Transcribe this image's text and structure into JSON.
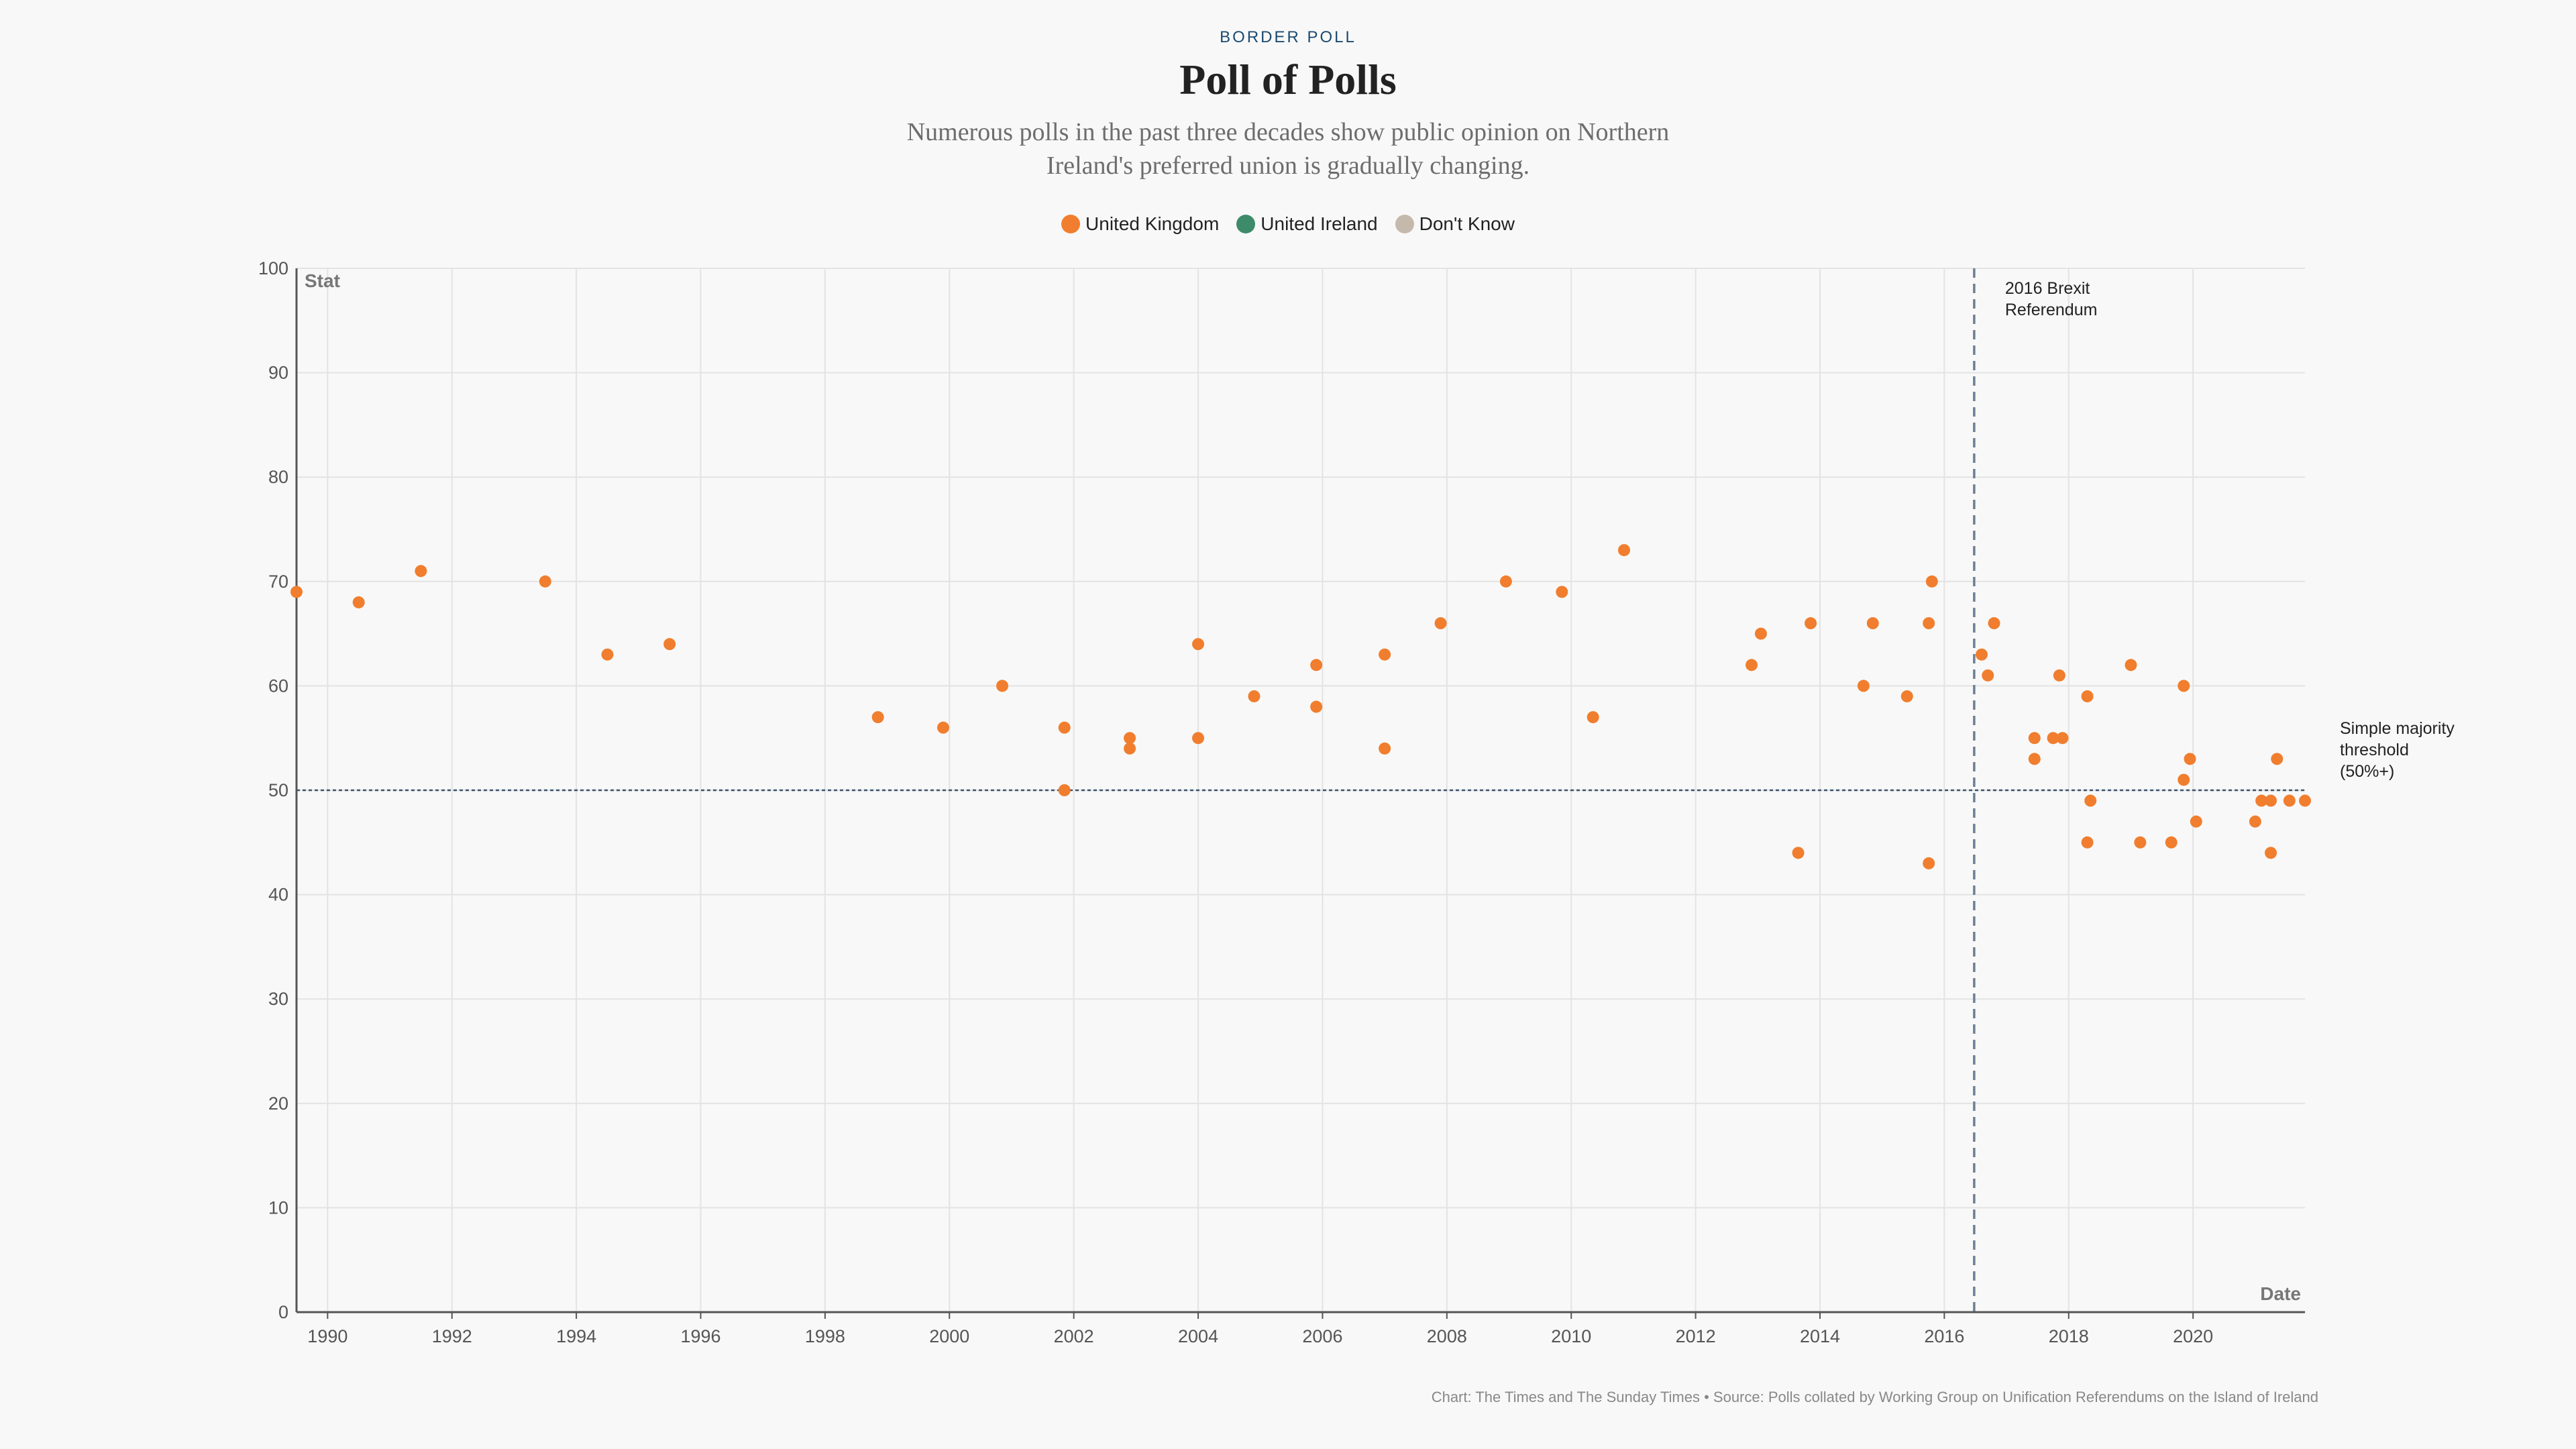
{
  "header": {
    "kicker": "BORDER POLL",
    "title": "Poll of Polls",
    "subtitle": "Numerous polls in the past three decades show public opinion on Northern Ireland's preferred union is gradually changing."
  },
  "legend": [
    {
      "label": "United Kingdom",
      "color": "#f07e2e"
    },
    {
      "label": "United Ireland",
      "color": "#3d8b68"
    },
    {
      "label": "Don't Know",
      "color": "#c5b9ab"
    }
  ],
  "footer": {
    "credit": "Chart: The Times and The Sunday Times • Source: Polls collated by Working Group on Unification Referendums on the Island of Ireland"
  },
  "chart_data": {
    "type": "scatter",
    "xlabel": "Date",
    "ylabel": "Stat",
    "xlim": [
      1989.5,
      2021.8
    ],
    "ylim": [
      0,
      100
    ],
    "x_ticks": [
      1990,
      1992,
      1994,
      1996,
      1998,
      2000,
      2002,
      2004,
      2006,
      2008,
      2010,
      2012,
      2014,
      2016,
      2018,
      2020
    ],
    "y_ticks": [
      0,
      10,
      20,
      30,
      40,
      50,
      60,
      70,
      80,
      90,
      100
    ],
    "grid": true,
    "legend_position": "top-center",
    "series": [
      {
        "name": "United Kingdom",
        "color": "#f07e2e",
        "points": [
          [
            1989.5,
            69
          ],
          [
            1990.5,
            68
          ],
          [
            1991.5,
            71
          ],
          [
            1993.5,
            70
          ],
          [
            1994.5,
            63
          ],
          [
            1995.5,
            64
          ],
          [
            1998.85,
            57
          ],
          [
            1999.9,
            56
          ],
          [
            2000.85,
            60
          ],
          [
            2001.85,
            56
          ],
          [
            2001.85,
            50
          ],
          [
            2002.9,
            55
          ],
          [
            2002.9,
            54
          ],
          [
            2004.0,
            64
          ],
          [
            2004.0,
            55
          ],
          [
            2004.9,
            59
          ],
          [
            2005.9,
            62
          ],
          [
            2005.9,
            58
          ],
          [
            2007.0,
            63
          ],
          [
            2007.0,
            54
          ],
          [
            2007.9,
            66
          ],
          [
            2008.95,
            70
          ],
          [
            2009.85,
            69
          ],
          [
            2010.35,
            57
          ],
          [
            2010.85,
            73
          ],
          [
            2012.9,
            62
          ],
          [
            2013.05,
            65
          ],
          [
            2013.65,
            44
          ],
          [
            2013.85,
            66
          ],
          [
            2014.7,
            60
          ],
          [
            2014.85,
            66
          ],
          [
            2015.4,
            59
          ],
          [
            2015.75,
            66
          ],
          [
            2015.75,
            43
          ],
          [
            2015.8,
            70
          ],
          [
            2016.6,
            63
          ],
          [
            2016.7,
            61
          ],
          [
            2016.8,
            66
          ],
          [
            2017.45,
            55
          ],
          [
            2017.45,
            53
          ],
          [
            2017.75,
            55
          ],
          [
            2017.85,
            61
          ],
          [
            2017.9,
            55
          ],
          [
            2018.3,
            59
          ],
          [
            2018.3,
            45
          ],
          [
            2018.35,
            49
          ],
          [
            2019.0,
            62
          ],
          [
            2019.15,
            45
          ],
          [
            2019.65,
            45
          ],
          [
            2019.85,
            60
          ],
          [
            2019.85,
            51
          ],
          [
            2019.95,
            53
          ],
          [
            2020.05,
            47
          ],
          [
            2021.0,
            47
          ],
          [
            2021.1,
            49
          ],
          [
            2021.25,
            49
          ],
          [
            2021.25,
            44
          ],
          [
            2021.35,
            53
          ],
          [
            2021.55,
            49
          ],
          [
            2021.8,
            49
          ]
        ]
      }
    ],
    "annotations": [
      {
        "type": "vline",
        "x": 2016.48,
        "label_lines": [
          "2016 Brexit",
          "Referendum"
        ]
      },
      {
        "type": "hline",
        "y": 50,
        "label_lines": [
          "Simple majority",
          "threshold",
          "(50%+)"
        ]
      }
    ]
  }
}
